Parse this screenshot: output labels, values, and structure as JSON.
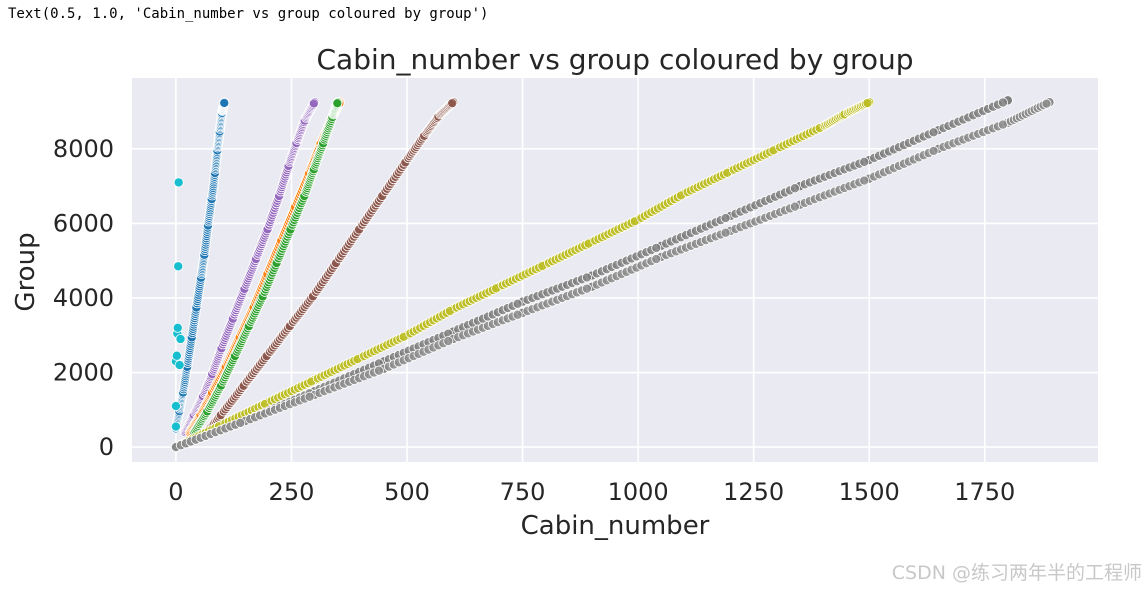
{
  "cell_output": "Text(0.5, 1.0, 'Cabin_number vs group coloured by group')",
  "watermark": "CSDN @练习两年半的工程师",
  "chart_data": {
    "type": "scatter",
    "title": "Cabin_number vs group coloured by group",
    "xlabel": "Cabin_number",
    "ylabel": "Group",
    "xlim": [
      -95,
      1995
    ],
    "ylim": [
      -400,
      9900
    ],
    "xticks": [
      0,
      250,
      500,
      750,
      1000,
      1250,
      1500,
      1750
    ],
    "yticks": [
      0,
      2000,
      4000,
      6000,
      8000
    ],
    "grid": true,
    "legend": "none",
    "series": [
      {
        "color": "#1f77b4",
        "x": [
          0,
          8,
          16,
          25,
          35,
          45,
          55,
          62,
          70,
          78,
          85,
          90,
          95,
          100,
          105
        ],
        "y": [
          500,
          1000,
          1500,
          2200,
          3000,
          3800,
          4600,
          5200,
          6000,
          6700,
          7400,
          8000,
          8500,
          9000,
          9250
        ]
      },
      {
        "color": "#17becf",
        "x": [
          0,
          0,
          0,
          2,
          3,
          4,
          5,
          6,
          8,
          10
        ],
        "y": [
          550,
          1100,
          2300,
          2450,
          3050,
          3200,
          4850,
          7100,
          2200,
          2900
        ]
      },
      {
        "color": "#9467bd",
        "x": [
          20,
          40,
          60,
          80,
          100,
          125,
          150,
          175,
          200,
          225,
          245,
          262,
          280,
          300
        ],
        "y": [
          400,
          900,
          1400,
          2000,
          2700,
          3500,
          4300,
          5100,
          5900,
          6800,
          7600,
          8200,
          8800,
          9250
        ]
      },
      {
        "color": "#ff7f0e",
        "x": [
          30,
          55,
          80,
          110,
          140,
          170,
          200,
          230,
          260,
          290,
          315,
          340,
          355
        ],
        "y": [
          400,
          900,
          1500,
          2200,
          3000,
          3800,
          4700,
          5600,
          6500,
          7400,
          8200,
          8900,
          9250
        ]
      },
      {
        "color": "#2ca02c",
        "x": [
          40,
          70,
          100,
          130,
          160,
          190,
          220,
          250,
          280,
          300,
          320,
          340,
          350
        ],
        "y": [
          400,
          1000,
          1700,
          2500,
          3300,
          4100,
          5000,
          5900,
          6800,
          7500,
          8200,
          8900,
          9250
        ]
      },
      {
        "color": "#8c564b",
        "x": [
          60,
          100,
          150,
          200,
          250,
          300,
          350,
          400,
          450,
          500,
          540,
          570,
          600
        ],
        "y": [
          300,
          900,
          1700,
          2500,
          3300,
          4100,
          5000,
          5900,
          6800,
          7700,
          8400,
          8900,
          9250
        ]
      },
      {
        "color": "#bcbd22",
        "x": [
          0,
          100,
          200,
          300,
          400,
          500,
          600,
          700,
          800,
          900,
          1000,
          1100,
          1200,
          1300,
          1400,
          1450,
          1500
        ],
        "y": [
          0,
          600,
          1200,
          1800,
          2400,
          3000,
          3700,
          4300,
          4900,
          5500,
          6100,
          6800,
          7400,
          8000,
          8600,
          8950,
          9250
        ]
      },
      {
        "color": "#7f7f7f",
        "x": [
          0,
          150,
          300,
          450,
          600,
          750,
          900,
          1050,
          1200,
          1350,
          1500,
          1650,
          1800
        ],
        "y": [
          0,
          700,
          1500,
          2300,
          3100,
          3900,
          4600,
          5400,
          6200,
          7000,
          7700,
          8500,
          9300
        ]
      },
      {
        "color": "#8a8a8a",
        "x": [
          0,
          150,
          300,
          450,
          600,
          750,
          900,
          1050,
          1200,
          1350,
          1500,
          1650,
          1800,
          1890
        ],
        "y": [
          0,
          700,
          1400,
          2100,
          2900,
          3600,
          4300,
          5100,
          5800,
          6500,
          7200,
          8000,
          8700,
          9250
        ]
      }
    ]
  }
}
